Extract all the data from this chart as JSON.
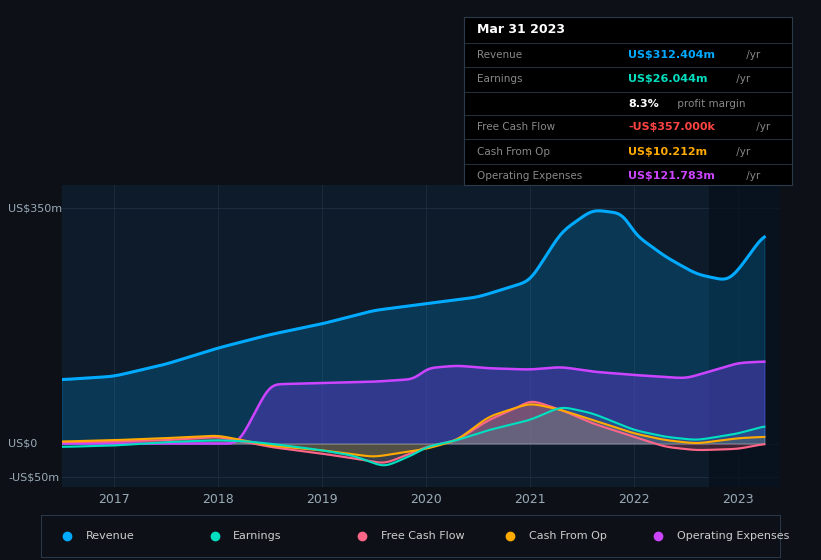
{
  "background_color": "#0d1117",
  "plot_bg_color": "#0d1b2a",
  "grid_color": "#1e2d3d",
  "title_box": {
    "date": "Mar 31 2023",
    "rows": [
      {
        "label": "Revenue",
        "value": "US$312.404m",
        "suffix": " /yr",
        "value_color": "#00aaff"
      },
      {
        "label": "Earnings",
        "value": "US$26.044m",
        "suffix": " /yr",
        "value_color": "#00e0c0"
      },
      {
        "label": "",
        "value": "8.3%",
        "suffix": " profit margin",
        "value_color": "#ffffff"
      },
      {
        "label": "Free Cash Flow",
        "value": "-US$357.000k",
        "suffix": " /yr",
        "value_color": "#ff4444"
      },
      {
        "label": "Cash From Op",
        "value": "US$10.212m",
        "suffix": " /yr",
        "value_color": "#ffaa00"
      },
      {
        "label": "Operating Expenses",
        "value": "US$121.783m",
        "suffix": " /yr",
        "value_color": "#cc44ff"
      }
    ]
  },
  "y_labels": [
    "US$350m",
    "US$0",
    "-US$50m"
  ],
  "y_values": [
    350,
    0,
    -50
  ],
  "x_ticks": [
    2017,
    2018,
    2019,
    2020,
    2021,
    2022,
    2023
  ],
  "series": {
    "revenue": {
      "color": "#00aaff",
      "fill_alpha": 0.2,
      "label": "Revenue",
      "x": [
        2016.5,
        2017.0,
        2017.5,
        2018.0,
        2018.5,
        2019.0,
        2019.5,
        2020.0,
        2020.5,
        2021.0,
        2021.3,
        2021.6,
        2021.9,
        2022.0,
        2022.3,
        2022.6,
        2022.9,
        2023.0,
        2023.25
      ],
      "y": [
        95,
        100,
        118,
        142,
        162,
        178,
        198,
        208,
        218,
        242,
        315,
        348,
        342,
        312,
        278,
        252,
        242,
        258,
        312
      ]
    },
    "earnings": {
      "color": "#00e0c0",
      "fill_alpha": 0.12,
      "label": "Earnings",
      "x": [
        2016.5,
        2017.0,
        2017.5,
        2018.0,
        2018.3,
        2018.6,
        2019.0,
        2019.3,
        2019.6,
        2019.9,
        2020.0,
        2020.3,
        2020.6,
        2021.0,
        2021.3,
        2021.6,
        2022.0,
        2022.3,
        2022.6,
        2023.0,
        2023.25
      ],
      "y": [
        -5,
        -3,
        2,
        5,
        3,
        -2,
        -10,
        -18,
        -35,
        -15,
        -5,
        5,
        20,
        35,
        55,
        45,
        20,
        10,
        5,
        15,
        26
      ]
    },
    "free_cash_flow": {
      "color": "#ff6688",
      "fill_alpha": 0.22,
      "label": "Free Cash Flow",
      "x": [
        2016.5,
        2017.0,
        2017.5,
        2018.0,
        2018.5,
        2019.0,
        2019.3,
        2019.6,
        2019.9,
        2020.0,
        2020.3,
        2020.6,
        2020.9,
        2021.0,
        2021.3,
        2021.6,
        2022.0,
        2022.3,
        2022.6,
        2023.0,
        2023.25
      ],
      "y": [
        2,
        3,
        5,
        10,
        -5,
        -15,
        -22,
        -30,
        -12,
        -5,
        5,
        35,
        55,
        65,
        50,
        30,
        10,
        -5,
        -10,
        -8,
        -0.4
      ]
    },
    "cash_from_op": {
      "color": "#ffaa00",
      "fill_alpha": 0.15,
      "label": "Cash From Op",
      "x": [
        2016.5,
        2017.0,
        2017.5,
        2018.0,
        2018.5,
        2019.0,
        2019.5,
        2020.0,
        2020.3,
        2020.6,
        2020.9,
        2021.0,
        2021.3,
        2021.6,
        2022.0,
        2022.3,
        2022.6,
        2023.0,
        2023.25
      ],
      "y": [
        3,
        5,
        8,
        12,
        -3,
        -10,
        -20,
        -8,
        5,
        40,
        55,
        60,
        50,
        35,
        15,
        5,
        0,
        8,
        10
      ]
    },
    "operating_expenses": {
      "color": "#cc44ff",
      "fill_color": "#6622aa",
      "fill_alpha": 0.55,
      "label": "Operating Expenses",
      "x": [
        2016.5,
        2017.0,
        2017.5,
        2018.0,
        2018.2,
        2018.5,
        2019.0,
        2019.5,
        2019.9,
        2020.0,
        2020.3,
        2020.6,
        2021.0,
        2021.3,
        2021.6,
        2022.0,
        2022.5,
        2023.0,
        2023.25
      ],
      "y": [
        0,
        0,
        0,
        0,
        0,
        88,
        90,
        92,
        96,
        112,
        116,
        112,
        110,
        114,
        107,
        102,
        97,
        120,
        122
      ]
    }
  },
  "legend": [
    {
      "label": "Revenue",
      "color": "#00aaff"
    },
    {
      "label": "Earnings",
      "color": "#00e0c0"
    },
    {
      "label": "Free Cash Flow",
      "color": "#ff6688"
    },
    {
      "label": "Cash From Op",
      "color": "#ffaa00"
    },
    {
      "label": "Operating Expenses",
      "color": "#cc44ff"
    }
  ],
  "xlim": [
    2016.5,
    2023.4
  ],
  "ylim": [
    -65,
    385
  ]
}
